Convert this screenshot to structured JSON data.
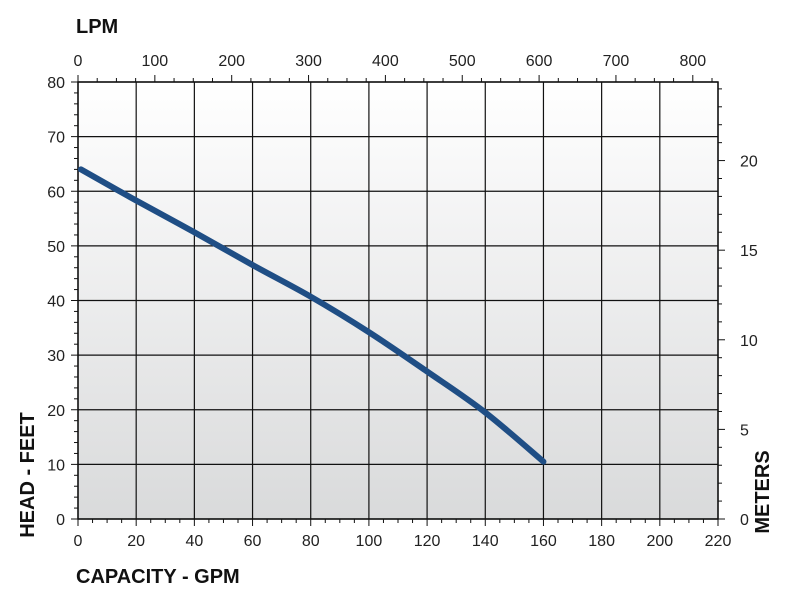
{
  "chart_data": {
    "type": "line",
    "title": "",
    "xlabel": "CAPACITY - GPM",
    "ylabel": "HEAD - FEET",
    "x2label": "LPM",
    "y2label": "METERS",
    "xlim": [
      0,
      220
    ],
    "ylim": [
      0,
      80
    ],
    "x2lim": [
      0,
      832.8
    ],
    "y2lim": [
      0,
      24.384
    ],
    "x_ticks": [
      0,
      20,
      40,
      60,
      80,
      100,
      120,
      140,
      160,
      180,
      200,
      220
    ],
    "y_ticks": [
      0,
      10,
      20,
      30,
      40,
      50,
      60,
      70,
      80
    ],
    "x2_ticks": [
      0,
      100,
      200,
      300,
      400,
      500,
      600,
      700,
      800
    ],
    "y2_ticks": [
      0,
      5,
      10,
      15,
      20
    ],
    "grid": true,
    "series": [
      {
        "name": "",
        "color": "#1f4e85",
        "x": [
          1,
          20,
          40,
          60,
          80,
          100,
          120,
          140,
          160
        ],
        "y": [
          64,
          58.3,
          52.5,
          46.5,
          40.7,
          34.2,
          27,
          19.5,
          10.5
        ]
      }
    ]
  }
}
